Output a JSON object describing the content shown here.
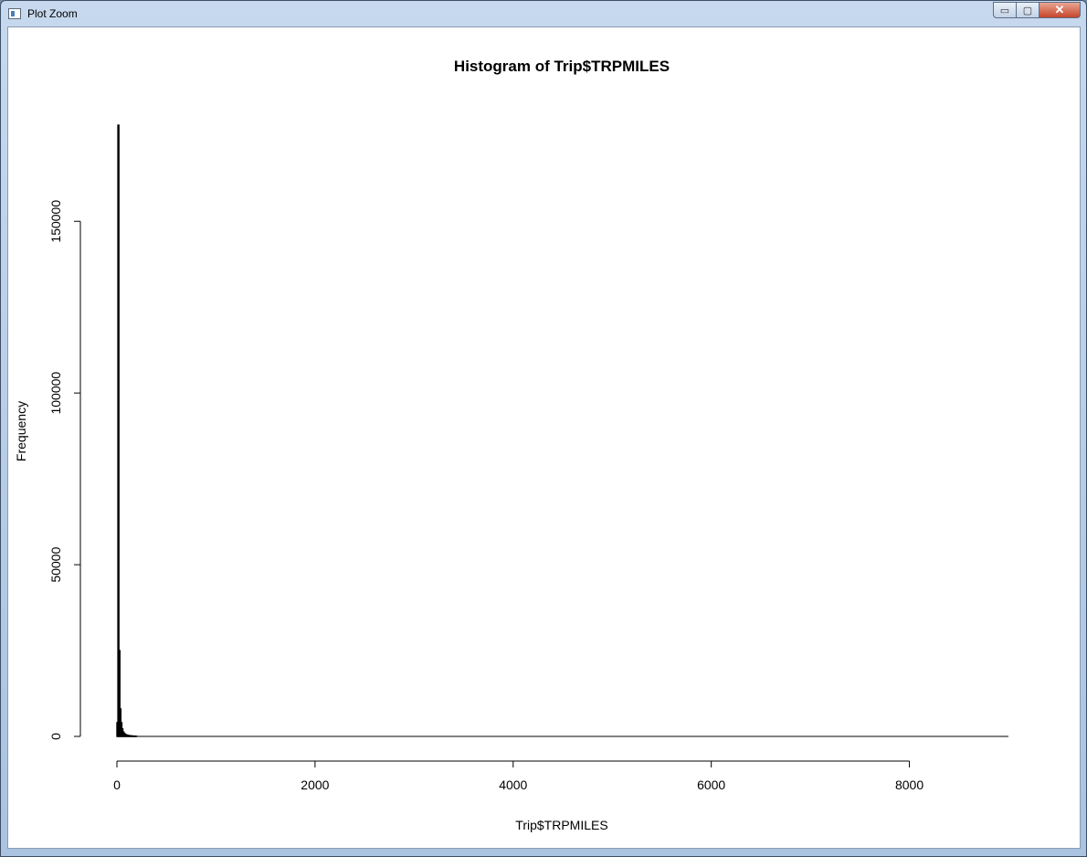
{
  "window": {
    "title": "Plot Zoom",
    "controls": {
      "minimize": "▭",
      "maximize": "▢",
      "close": "✕"
    }
  },
  "chart_data": {
    "type": "bar",
    "title": "Histogram of Trip$TRPMILES",
    "xlabel": "Trip$TRPMILES",
    "ylabel": "Frequency",
    "xlim": [
      0,
      9000
    ],
    "ylim": [
      0,
      178000
    ],
    "x_ticks": [
      0,
      2000,
      4000,
      6000,
      8000
    ],
    "y_ticks": [
      0,
      50000,
      100000,
      150000
    ],
    "x_tick_labels": [
      "0",
      "2000",
      "4000",
      "6000",
      "8000"
    ],
    "y_tick_labels": [
      "0",
      "50000",
      "100000",
      "150000"
    ],
    "bin_width": 10,
    "bins": [
      {
        "x": 0,
        "count": 4000
      },
      {
        "x": 10,
        "count": 178000
      },
      {
        "x": 20,
        "count": 25000
      },
      {
        "x": 30,
        "count": 8000
      },
      {
        "x": 40,
        "count": 4000
      },
      {
        "x": 50,
        "count": 2200
      },
      {
        "x": 60,
        "count": 1300
      },
      {
        "x": 70,
        "count": 900
      },
      {
        "x": 80,
        "count": 600
      },
      {
        "x": 90,
        "count": 450
      },
      {
        "x": 100,
        "count": 350
      },
      {
        "x": 110,
        "count": 280
      },
      {
        "x": 120,
        "count": 220
      },
      {
        "x": 130,
        "count": 180
      },
      {
        "x": 140,
        "count": 150
      },
      {
        "x": 150,
        "count": 120
      },
      {
        "x": 160,
        "count": 100
      },
      {
        "x": 170,
        "count": 80
      },
      {
        "x": 180,
        "count": 60
      },
      {
        "x": 190,
        "count": 40
      }
    ],
    "grid": false,
    "colors": {
      "bar_fill": "#ffffff",
      "bar_stroke": "#000000",
      "axis": "#000000"
    }
  }
}
